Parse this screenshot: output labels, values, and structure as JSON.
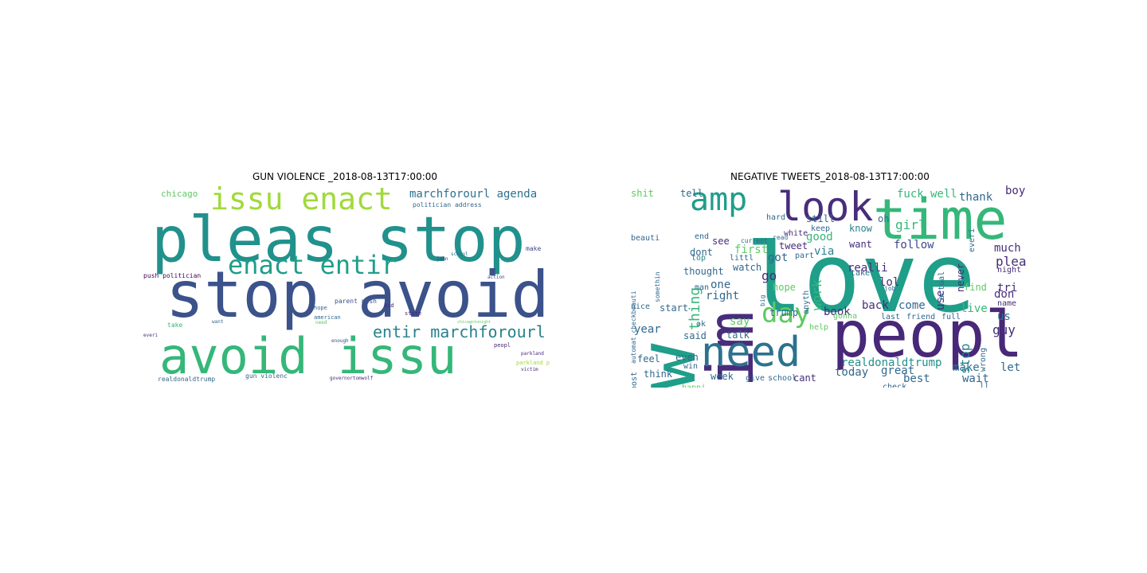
{
  "left_panel": {
    "title": "GUN VIOLENCE _2018-08-13T17:00:00",
    "words": [
      {
        "text": "pleas stop",
        "color": "#21918c"
      },
      {
        "text": "stop avoid",
        "color": "#3b528b"
      },
      {
        "text": "avoid issu",
        "color": "#35b779"
      },
      {
        "text": "issu enact",
        "color": "#a0da39"
      },
      {
        "text": "enact entir",
        "color": "#1f9e89"
      },
      {
        "text": "entir marchforourl",
        "color": "#26828e"
      },
      {
        "text": "marchforourl agenda",
        "color": "#2c728e"
      },
      {
        "text": "chicago",
        "color": "#5ec962"
      },
      {
        "text": "politician address",
        "color": "#31688e"
      },
      {
        "text": "push politician",
        "color": "#440154"
      },
      {
        "text": "realdonaldtrump",
        "color": "#31688e"
      },
      {
        "text": "gun violenc",
        "color": "#31688e"
      },
      {
        "text": "parkland parent",
        "color": "#a0da39"
      },
      {
        "text": "parent push",
        "color": "#3b528b"
      },
      {
        "text": "american",
        "color": "#31688e"
      },
      {
        "text": "hope",
        "color": "#31688e"
      },
      {
        "text": "take",
        "color": "#35b779"
      },
      {
        "text": "make",
        "color": "#3e4989"
      },
      {
        "text": "kid",
        "color": "#482878"
      },
      {
        "text": "peopl",
        "color": "#482878"
      },
      {
        "text": "victim",
        "color": "#482878"
      },
      {
        "text": "everi",
        "color": "#482878"
      },
      {
        "text": "want",
        "color": "#31688e"
      },
      {
        "text": "action",
        "color": "#3e4989"
      },
      {
        "text": "enough",
        "color": "#3e4989"
      },
      {
        "text": "school",
        "color": "#31688e"
      },
      {
        "text": "governortomwolf",
        "color": "#482878"
      },
      {
        "text": "state",
        "color": "#482878"
      },
      {
        "text": "john",
        "color": "#482878"
      },
      {
        "text": "need",
        "color": "#5ec962"
      },
      {
        "text": "chicagotonight",
        "color": "#5ec962"
      },
      {
        "text": "parkland",
        "color": "#482878"
      }
    ]
  },
  "right_panel": {
    "title": "NEGATIVE TWEETS_2018-08-13T17:00:00",
    "words": [
      {
        "text": "love",
        "color": "#1f9e89"
      },
      {
        "text": "new",
        "color": "#1f9e89"
      },
      {
        "text": "im",
        "color": "#472d7b"
      },
      {
        "text": "peopl",
        "color": "#482878"
      },
      {
        "text": "time",
        "color": "#35b779"
      },
      {
        "text": "need",
        "color": "#2c728e"
      },
      {
        "text": "look",
        "color": "#472d7b"
      },
      {
        "text": "amp",
        "color": "#1f9e89"
      },
      {
        "text": "day",
        "color": "#5ec962"
      },
      {
        "text": "realdonaldtrump",
        "color": "#21918c"
      },
      {
        "text": "one",
        "color": "#31688e"
      },
      {
        "text": "got",
        "color": "#31688e"
      },
      {
        "text": "go",
        "color": "#472d7b"
      },
      {
        "text": "right",
        "color": "#31688e"
      },
      {
        "text": "say",
        "color": "#5ec962"
      },
      {
        "text": "thing",
        "color": "#35b779"
      },
      {
        "text": "watch",
        "color": "#31688e"
      },
      {
        "text": "good",
        "color": "#35b779"
      },
      {
        "text": "via",
        "color": "#26828e"
      },
      {
        "text": "realli",
        "color": "#472d7b"
      },
      {
        "text": "follow",
        "color": "#3e4989"
      },
      {
        "text": "want",
        "color": "#472d7b"
      },
      {
        "text": "work",
        "color": "#35b779"
      },
      {
        "text": "know",
        "color": "#26828e"
      },
      {
        "text": "girl",
        "color": "#35b779"
      },
      {
        "text": "fuck",
        "color": "#35b779"
      },
      {
        "text": "well",
        "color": "#35b779"
      },
      {
        "text": "thank",
        "color": "#31688e"
      },
      {
        "text": "boy",
        "color": "#482878"
      },
      {
        "text": "much",
        "color": "#472d7b"
      },
      {
        "text": "plea",
        "color": "#472d7b"
      },
      {
        "text": "tri",
        "color": "#472d7b"
      },
      {
        "text": "don",
        "color": "#472d7b"
      },
      {
        "text": "us",
        "color": "#2c728e"
      },
      {
        "text": "guy",
        "color": "#472d7b"
      },
      {
        "text": "let",
        "color": "#31688e"
      },
      {
        "text": "make",
        "color": "#2c728e"
      },
      {
        "text": "wait",
        "color": "#31688e"
      },
      {
        "text": "best",
        "color": "#31688e"
      },
      {
        "text": "great",
        "color": "#31688e"
      },
      {
        "text": "today",
        "color": "#31688e"
      },
      {
        "text": "back",
        "color": "#472d7b"
      },
      {
        "text": "come",
        "color": "#31688e"
      },
      {
        "text": "live",
        "color": "#35b779"
      },
      {
        "text": "book",
        "color": "#472d7b"
      },
      {
        "text": "stop",
        "color": "#26828e"
      },
      {
        "text": "year",
        "color": "#31688e"
      },
      {
        "text": "said",
        "color": "#31688e"
      },
      {
        "text": "feel",
        "color": "#31688e"
      },
      {
        "text": "even",
        "color": "#31688e"
      },
      {
        "text": "think",
        "color": "#31688e"
      },
      {
        "text": "week",
        "color": "#31688e"
      },
      {
        "text": "school",
        "color": "#31688e"
      },
      {
        "text": "give",
        "color": "#31688e"
      },
      {
        "text": "cant",
        "color": "#472d7b"
      },
      {
        "text": "see",
        "color": "#472d7b"
      },
      {
        "text": "dont",
        "color": "#31688e"
      },
      {
        "text": "first",
        "color": "#5ec962"
      },
      {
        "text": "tweet",
        "color": "#472d7b"
      },
      {
        "text": "still",
        "color": "#31688e"
      },
      {
        "text": "hard",
        "color": "#31688e"
      },
      {
        "text": "tell",
        "color": "#31688e"
      },
      {
        "text": "shit",
        "color": "#5ec962"
      },
      {
        "text": "oh",
        "color": "#31688e"
      },
      {
        "text": "never",
        "color": "#472d7b"
      },
      {
        "text": "hope",
        "color": "#5ec962"
      },
      {
        "text": "find",
        "color": "#5ec962"
      },
      {
        "text": "trump",
        "color": "#31688e"
      },
      {
        "text": "talk",
        "color": "#31688e"
      },
      {
        "text": "thought",
        "color": "#31688e"
      },
      {
        "text": "nice",
        "color": "#31688e"
      },
      {
        "text": "start",
        "color": "#31688e"
      },
      {
        "text": "lol",
        "color": "#472d7b"
      },
      {
        "text": "friend",
        "color": "#31688e"
      },
      {
        "text": "full",
        "color": "#31688e"
      },
      {
        "text": "last",
        "color": "#31688e"
      },
      {
        "text": "night",
        "color": "#472d7b"
      },
      {
        "text": "name",
        "color": "#472d7b"
      },
      {
        "text": "happi",
        "color": "#5ec962"
      },
      {
        "text": "win",
        "color": "#31688e"
      },
      {
        "text": "check",
        "color": "#31688e"
      },
      {
        "text": "ll",
        "color": "#31688e"
      },
      {
        "text": "littl",
        "color": "#31688e"
      },
      {
        "text": "part",
        "color": "#31688e"
      },
      {
        "text": "man",
        "color": "#31688e"
      },
      {
        "text": "end",
        "color": "#31688e"
      },
      {
        "text": "top",
        "color": "#26828e"
      },
      {
        "text": "white",
        "color": "#472d7b"
      },
      {
        "text": "keep",
        "color": "#31688e"
      },
      {
        "text": "read",
        "color": "#31688e"
      },
      {
        "text": "current",
        "color": "#31688e"
      },
      {
        "text": "use",
        "color": "#472d7b"
      },
      {
        "text": "actual",
        "color": "#31688e"
      },
      {
        "text": "anyth",
        "color": "#31688e"
      },
      {
        "text": "take",
        "color": "#31688e"
      },
      {
        "text": "job",
        "color": "#31688e"
      },
      {
        "text": "beauti",
        "color": "#31688e"
      },
      {
        "text": "automat checkbeauti",
        "color": "#31688e"
      },
      {
        "text": "post",
        "color": "#31688e"
      },
      {
        "text": "wrong",
        "color": "#31688e"
      },
      {
        "text": "everi",
        "color": "#31688e"
      },
      {
        "text": "gonna",
        "color": "#5ec962"
      },
      {
        "text": "help",
        "color": "#5ec962"
      },
      {
        "text": "ok",
        "color": "#31688e"
      },
      {
        "text": "somethin",
        "color": "#31688e"
      },
      {
        "text": "big",
        "color": "#31688e"
      }
    ]
  }
}
